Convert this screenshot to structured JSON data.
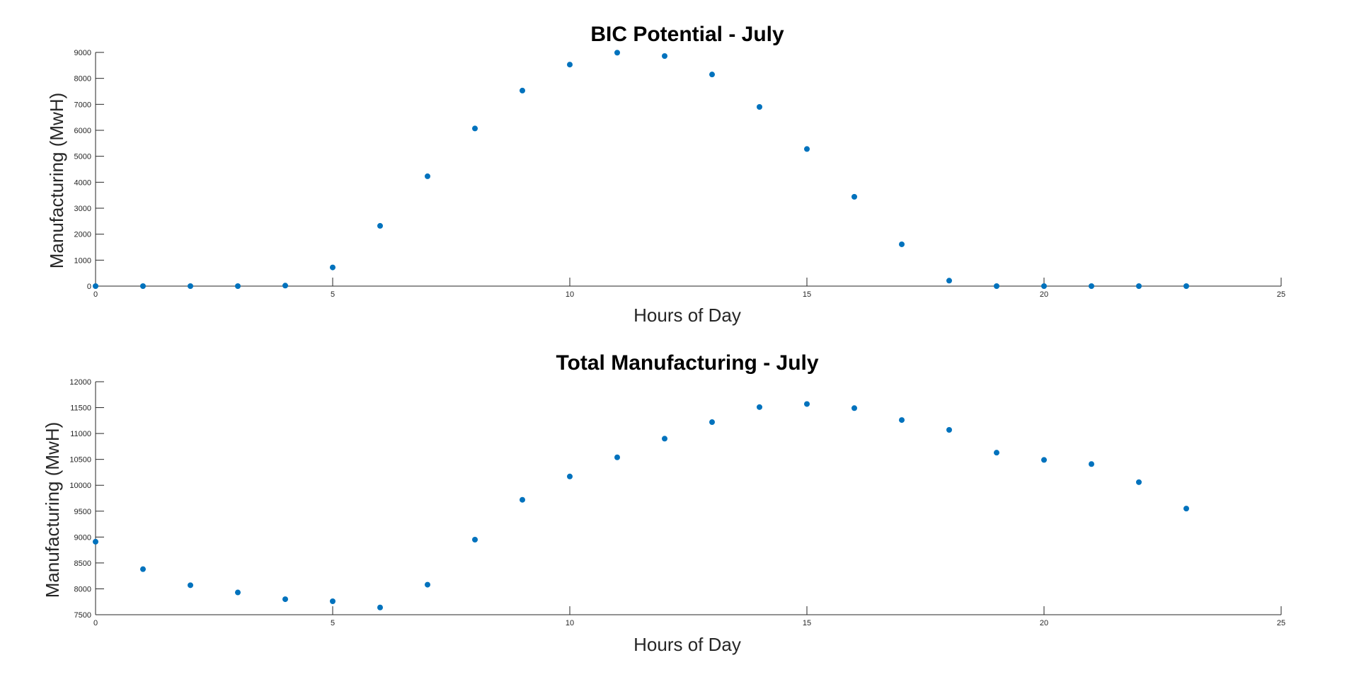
{
  "chart_data": [
    {
      "type": "scatter",
      "title": "BIC Potential - July",
      "xlabel": "Hours of Day",
      "ylabel": "Manufacturing (MwH)",
      "xlim": [
        0,
        25
      ],
      "ylim": [
        0,
        9000
      ],
      "xticks": [
        0,
        5,
        10,
        15,
        20,
        25
      ],
      "yticks": [
        0,
        1000,
        2000,
        3000,
        4000,
        5000,
        6000,
        7000,
        8000,
        9000
      ],
      "grid": false,
      "color": "#0072BD",
      "x": [
        0,
        1,
        2,
        3,
        4,
        5,
        6,
        7,
        8,
        9,
        10,
        11,
        12,
        13,
        14,
        15,
        16,
        17,
        18,
        19,
        20,
        21,
        22,
        23
      ],
      "y": [
        0,
        0,
        0,
        0,
        20,
        720,
        2320,
        4230,
        6070,
        7530,
        8530,
        8990,
        8860,
        8150,
        6900,
        5280,
        3440,
        1610,
        210,
        0,
        0,
        0,
        0,
        0
      ]
    },
    {
      "type": "scatter",
      "title": "Total Manufacturing - July",
      "xlabel": "Hours of Day",
      "ylabel": "Manufacturing (MwH)",
      "xlim": [
        0,
        25
      ],
      "ylim": [
        7500,
        12000
      ],
      "xticks": [
        0,
        5,
        10,
        15,
        20,
        25
      ],
      "yticks": [
        7500,
        8000,
        8500,
        9000,
        9500,
        10000,
        10500,
        11000,
        11500,
        12000
      ],
      "grid": false,
      "color": "#0072BD",
      "x": [
        0,
        1,
        2,
        3,
        4,
        5,
        6,
        7,
        8,
        9,
        10,
        11,
        12,
        13,
        14,
        15,
        16,
        17,
        18,
        19,
        20,
        21,
        22,
        23
      ],
      "y": [
        8910,
        8380,
        8070,
        7930,
        7800,
        7760,
        7640,
        8080,
        8950,
        9720,
        10170,
        10540,
        10900,
        11220,
        11510,
        11570,
        11490,
        11260,
        11070,
        10630,
        10490,
        10410,
        10060,
        9550
      ]
    }
  ]
}
